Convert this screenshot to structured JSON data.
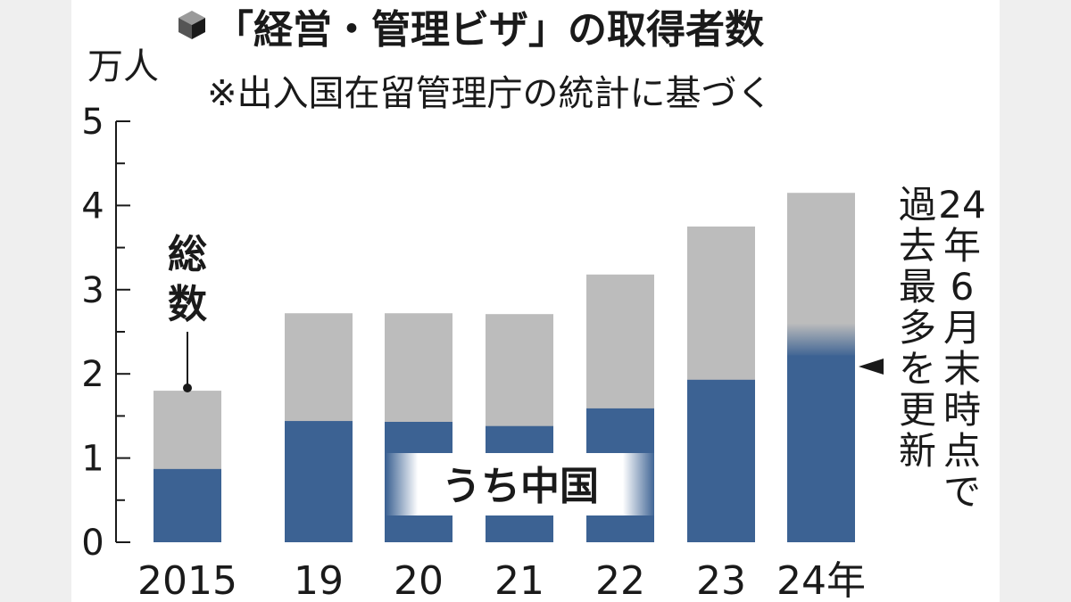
{
  "chart_data": {
    "type": "bar",
    "title": "「経営・管理ビザ」の取得者数",
    "subtitle": "※出入国在留管理庁の統計に基づく",
    "ylabel": "万人",
    "ylim": [
      0,
      5
    ],
    "yticks": [
      0,
      1,
      2,
      3,
      4,
      5
    ],
    "categories": [
      "2015",
      "19",
      "20",
      "21",
      "22",
      "23",
      "24年"
    ],
    "series": [
      {
        "name": "総数",
        "values": [
          1.8,
          2.72,
          2.72,
          2.71,
          3.18,
          3.75,
          4.15
        ]
      },
      {
        "name": "うち中国",
        "values": [
          0.87,
          1.44,
          1.43,
          1.38,
          1.59,
          1.93,
          2.22
        ]
      }
    ],
    "total_label": "総数",
    "china_label": "うち中国",
    "annotation": "24年6月末時点で過去最多を更新",
    "annotation_lines": [
      "24年6月末時点で",
      "過去最多を更新"
    ],
    "grid": false,
    "colors": {
      "total": "#bcbcbc",
      "china": "#3c6293",
      "text": "#1a1a1a"
    }
  }
}
